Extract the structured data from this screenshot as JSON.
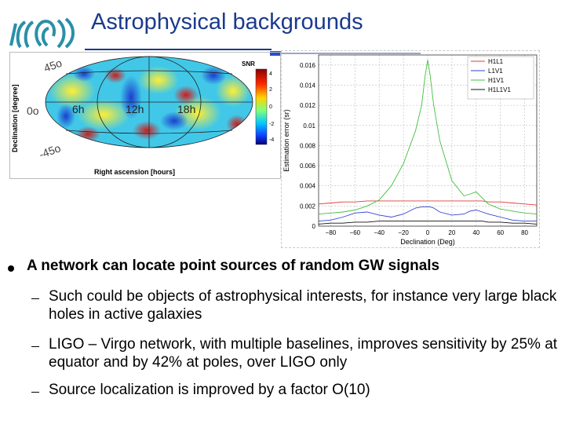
{
  "slide": {
    "title": "Astrophysical backgrounds",
    "main_bullet": "A network can locate point sources of random GW signals",
    "sub_bullets": [
      "Such could be objects of astrophysical interests, for instance very large black holes in active galaxies",
      "LIGO – Virgo network, with multiple baselines, improves sensitivity by 25% at equator and by 42% at poles, over LIGO only",
      "Source localization is improved by a factor O(10)"
    ]
  },
  "logo": {
    "icon": "ego-virgo-logo-icon"
  },
  "skymap": {
    "ylabel": "Declination [degree]",
    "xlabel": "Right ascension [hours]",
    "colorbar_title": "SNR",
    "colorbar_ticks": [
      "4",
      "2",
      "0",
      "-2",
      "-4"
    ],
    "dec_labels": [
      "45o",
      "0o",
      "-45o"
    ],
    "ra_labels": [
      "6h",
      "12h",
      "18h"
    ]
  },
  "chart_data": {
    "type": "line",
    "title": "",
    "xlabel": "Declination (Deg)",
    "ylabel": "Estimation error (sr)",
    "xlim": [
      -90,
      90
    ],
    "ylim": [
      0,
      0.017
    ],
    "xticks": [
      -80,
      -60,
      -40,
      -20,
      0,
      20,
      40,
      60,
      80
    ],
    "yticks": [
      0,
      0.002,
      0.004,
      0.006,
      0.008,
      0.01,
      0.012,
      0.014,
      0.016
    ],
    "ytick_labels": [
      "0",
      "0.002",
      "0.004",
      "0.006",
      "0.008",
      "0.01",
      "0.012",
      "0.014",
      "0.016"
    ],
    "xtick_labels": [
      "−80",
      "−60",
      "−40",
      "−20",
      "0",
      "20",
      "40",
      "60",
      "80"
    ],
    "legend_position": "top-right",
    "x": [
      -90,
      -80,
      -70,
      -60,
      -50,
      -40,
      -30,
      -20,
      -10,
      -5,
      -2,
      0,
      2,
      5,
      10,
      20,
      30,
      35,
      40,
      45,
      50,
      60,
      70,
      80,
      90
    ],
    "series": [
      {
        "name": "H1L1",
        "color": "#e23b3b",
        "values": [
          0.0022,
          0.0023,
          0.0024,
          0.0024,
          0.0025,
          0.0025,
          0.0025,
          0.0025,
          0.0025,
          0.0025,
          0.0025,
          0.0025,
          0.0025,
          0.0025,
          0.0025,
          0.0025,
          0.0025,
          0.0025,
          0.0025,
          0.0025,
          0.0024,
          0.0024,
          0.0023,
          0.0022,
          0.0021
        ]
      },
      {
        "name": "L1V1",
        "color": "#3344cc",
        "values": [
          0.0005,
          0.0006,
          0.0009,
          0.0013,
          0.0014,
          0.0011,
          0.0009,
          0.0012,
          0.0018,
          0.0019,
          0.0019,
          0.0019,
          0.0019,
          0.0018,
          0.0014,
          0.0011,
          0.0012,
          0.0015,
          0.0016,
          0.0014,
          0.0012,
          0.0009,
          0.0006,
          0.0005,
          0.0005
        ]
      },
      {
        "name": "H1V1",
        "color": "#3fbf3f",
        "values": [
          0.0012,
          0.0013,
          0.0014,
          0.0016,
          0.002,
          0.0026,
          0.004,
          0.0062,
          0.0095,
          0.012,
          0.015,
          0.0165,
          0.015,
          0.012,
          0.0085,
          0.0045,
          0.003,
          0.0032,
          0.0034,
          0.0028,
          0.0022,
          0.0017,
          0.0015,
          0.0013,
          0.0012
        ]
      },
      {
        "name": "H1L1V1",
        "color": "#111111",
        "values": [
          0.0002,
          0.0003,
          0.0003,
          0.0004,
          0.0004,
          0.0005,
          0.0005,
          0.0005,
          0.0005,
          0.0005,
          0.0005,
          0.0005,
          0.0005,
          0.0005,
          0.0005,
          0.0005,
          0.0005,
          0.0005,
          0.0005,
          0.0005,
          0.0004,
          0.0004,
          0.0003,
          0.0003,
          0.0002
        ]
      }
    ]
  }
}
